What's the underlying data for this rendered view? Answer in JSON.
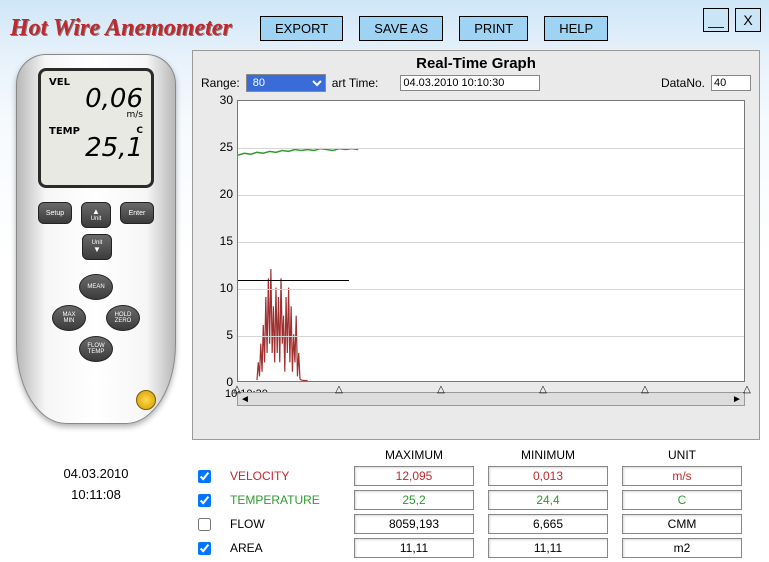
{
  "app_title": "Hot Wire Anemometer",
  "toolbar": {
    "export": "EXPORT",
    "save_as": "SAVE AS",
    "print": "PRINT",
    "help": "HELP"
  },
  "window": {
    "minimize": "__",
    "close": "X"
  },
  "device": {
    "vel_label": "VEL",
    "vel_value": "0,06",
    "vel_unit": "m/s",
    "temp_label": "TEMP",
    "temp_value": "25,1",
    "temp_unit": "C",
    "buttons": {
      "setup": "Setup",
      "unit_up": "▲\nUnit",
      "enter": "Enter",
      "unit_down": "Unit\n▼",
      "mean": "MEAN",
      "maxmin": "MAX\nMIN",
      "holdzero": "HOLD\nZERO",
      "flowtemp": "FLOW\nTEMP"
    }
  },
  "datetime": {
    "date": "04.03.2010",
    "time": "10:11:08"
  },
  "graph": {
    "title": "Real-Time Graph",
    "range_label": "Range:",
    "range_value": "80",
    "starttime_label": "art Time:",
    "starttime_value": "04.03.2010 10:10:30",
    "datano_label": "DataNo.",
    "datano_value": "40",
    "y": {
      "min": 0,
      "max": 30,
      "step": 5,
      "ticks": [
        0,
        5,
        10,
        15,
        20,
        25,
        30
      ]
    },
    "x_axis_start_label": "10:10:30",
    "marker_positions_pct": [
      0,
      20,
      40,
      60,
      80,
      100
    ],
    "annotation_line_y": 11,
    "series": {
      "temperature": {
        "color": "#2e9b2e",
        "stroke_width": 1.5,
        "points": [
          [
            0,
            24.2
          ],
          [
            1,
            24.4
          ],
          [
            2,
            24.3
          ],
          [
            3,
            24.5
          ],
          [
            4,
            24.4
          ],
          [
            5,
            24.6
          ],
          [
            6,
            24.5
          ],
          [
            7,
            24.7
          ],
          [
            8,
            24.6
          ],
          [
            9,
            24.8
          ],
          [
            10,
            24.7
          ],
          [
            11,
            24.8
          ],
          [
            12,
            24.7
          ],
          [
            13,
            24.9
          ],
          [
            14,
            24.8
          ],
          [
            15,
            24.7
          ],
          [
            16,
            24.9
          ],
          [
            17,
            24.8
          ],
          [
            18,
            24.9
          ],
          [
            19,
            24.8
          ]
        ]
      },
      "velocity": {
        "color": "#a03030",
        "stroke_width": 1.2,
        "points": [
          [
            3,
            0.1
          ],
          [
            3.2,
            2
          ],
          [
            3.4,
            0.5
          ],
          [
            3.6,
            4
          ],
          [
            3.8,
            1
          ],
          [
            4,
            6
          ],
          [
            4.2,
            2
          ],
          [
            4.4,
            9
          ],
          [
            4.6,
            3
          ],
          [
            4.8,
            11
          ],
          [
            5,
            4
          ],
          [
            5.2,
            12
          ],
          [
            5.4,
            3
          ],
          [
            5.6,
            8
          ],
          [
            5.8,
            2
          ],
          [
            6,
            10
          ],
          [
            6.2,
            3
          ],
          [
            6.4,
            9
          ],
          [
            6.6,
            2
          ],
          [
            6.8,
            11
          ],
          [
            7,
            4
          ],
          [
            7.2,
            7
          ],
          [
            7.4,
            1
          ],
          [
            7.6,
            9
          ],
          [
            7.8,
            3
          ],
          [
            8,
            10
          ],
          [
            8.2,
            2
          ],
          [
            8.4,
            8
          ],
          [
            8.6,
            1
          ],
          [
            8.8,
            5
          ],
          [
            9,
            2
          ],
          [
            9.2,
            7
          ],
          [
            9.4,
            0.5
          ],
          [
            9.6,
            3
          ],
          [
            9.8,
            0.2
          ],
          [
            10,
            0.1
          ],
          [
            10.5,
            0.05
          ],
          [
            11,
            0.05
          ]
        ]
      }
    },
    "x_domain": [
      0,
      80
    ],
    "background_color": "#ffffff",
    "grid_color": "#d5d5d5"
  },
  "stats": {
    "headers": {
      "max": "MAXIMUM",
      "min": "MINIMUM",
      "unit": "UNIT"
    },
    "rows": [
      {
        "key": "velocity",
        "label": "VELOCITY",
        "color": "#c1282d",
        "checked": true,
        "max": "12,095",
        "min": "0,013",
        "unit": "m/s"
      },
      {
        "key": "temperature",
        "label": "TEMPERATURE",
        "color": "#2e9b2e",
        "checked": true,
        "max": "25,2",
        "min": "24,4",
        "unit": "C"
      },
      {
        "key": "flow",
        "label": "FLOW",
        "color": "#000000",
        "checked": false,
        "max": "8059,193",
        "min": "6,665",
        "unit": "CMM"
      },
      {
        "key": "area",
        "label": "AREA",
        "color": "#000000",
        "checked": true,
        "max": "11,11",
        "min": "11,11",
        "unit": "m2"
      }
    ]
  }
}
